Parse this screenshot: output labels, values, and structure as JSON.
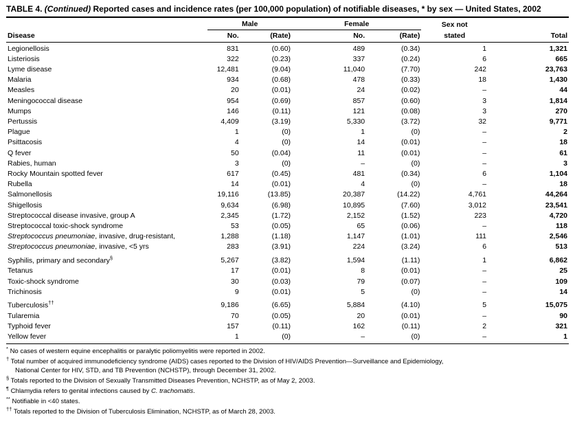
{
  "title": {
    "prefix": "TABLE 4.",
    "continued": "(Continued)",
    "rest": "Reported cases and incidence rates (per 100,000 population) of notifiable diseases, * by sex — United States, 2002"
  },
  "table": {
    "header": {
      "disease": "Disease",
      "male": "Male",
      "female": "Female",
      "sex_not": "Sex not",
      "stated": "stated",
      "no": "No.",
      "rate": "(Rate)",
      "total": "Total"
    },
    "rows": [
      {
        "disease": [
          {
            "t": "Legionellosis"
          }
        ],
        "male_no": "831",
        "male_rate": "(0.60)",
        "female_no": "489",
        "female_rate": "(0.34)",
        "sex_not_stated": "1",
        "total": "1,321"
      },
      {
        "disease": [
          {
            "t": "Listeriosis"
          }
        ],
        "male_no": "322",
        "male_rate": "(0.23)",
        "female_no": "337",
        "female_rate": "(0.24)",
        "sex_not_stated": "6",
        "total": "665"
      },
      {
        "disease": [
          {
            "t": "Lyme disease"
          }
        ],
        "male_no": "12,481",
        "male_rate": "(9.04)",
        "female_no": "11,040",
        "female_rate": "(7.70)",
        "sex_not_stated": "242",
        "total": "23,763"
      },
      {
        "disease": [
          {
            "t": "Malaria"
          }
        ],
        "male_no": "934",
        "male_rate": "(0.68)",
        "female_no": "478",
        "female_rate": "(0.33)",
        "sex_not_stated": "18",
        "total": "1,430"
      },
      {
        "disease": [
          {
            "t": "Measles"
          }
        ],
        "male_no": "20",
        "male_rate": "(0.01)",
        "female_no": "24",
        "female_rate": "(0.02)",
        "sex_not_stated": "–",
        "total": "44"
      },
      {
        "disease": [
          {
            "t": "Meningococcal disease"
          }
        ],
        "male_no": "954",
        "male_rate": "(0.69)",
        "female_no": "857",
        "female_rate": "(0.60)",
        "sex_not_stated": "3",
        "total": "1,814"
      },
      {
        "disease": [
          {
            "t": "Mumps"
          }
        ],
        "male_no": "146",
        "male_rate": "(0.11)",
        "female_no": "121",
        "female_rate": "(0.08)",
        "sex_not_stated": "3",
        "total": "270"
      },
      {
        "disease": [
          {
            "t": "Pertussis"
          }
        ],
        "male_no": "4,409",
        "male_rate": "(3.19)",
        "female_no": "5,330",
        "female_rate": "(3.72)",
        "sex_not_stated": "32",
        "total": "9,771"
      },
      {
        "disease": [
          {
            "t": "Plague"
          }
        ],
        "male_no": "1",
        "male_rate": "(0)",
        "female_no": "1",
        "female_rate": "(0)",
        "sex_not_stated": "–",
        "total": "2"
      },
      {
        "disease": [
          {
            "t": "Psittacosis"
          }
        ],
        "male_no": "4",
        "male_rate": "(0)",
        "female_no": "14",
        "female_rate": "(0.01)",
        "sex_not_stated": "–",
        "total": "18"
      },
      {
        "disease": [
          {
            "t": "Q fever"
          }
        ],
        "male_no": "50",
        "male_rate": "(0.04)",
        "female_no": "11",
        "female_rate": "(0.01)",
        "sex_not_stated": "–",
        "total": "61"
      },
      {
        "disease": [
          {
            "t": "Rabies, human"
          }
        ],
        "male_no": "3",
        "male_rate": "(0)",
        "female_no": "–",
        "female_rate": "(0)",
        "sex_not_stated": "–",
        "total": "3"
      },
      {
        "disease": [
          {
            "t": "Rocky Mountain spotted fever"
          }
        ],
        "male_no": "617",
        "male_rate": "(0.45)",
        "female_no": "481",
        "female_rate": "(0.34)",
        "sex_not_stated": "6",
        "total": "1,104"
      },
      {
        "disease": [
          {
            "t": "Rubella"
          }
        ],
        "male_no": "14",
        "male_rate": "(0.01)",
        "female_no": "4",
        "female_rate": "(0)",
        "sex_not_stated": "–",
        "total": "18"
      },
      {
        "disease": [
          {
            "t": "Salmonellosis"
          }
        ],
        "male_no": "19,116",
        "male_rate": "(13.85)",
        "female_no": "20,387",
        "female_rate": "(14.22)",
        "sex_not_stated": "4,761",
        "total": "44,264"
      },
      {
        "disease": [
          {
            "t": "Shigellosis"
          }
        ],
        "male_no": "9,634",
        "male_rate": "(6.98)",
        "female_no": "10,895",
        "female_rate": "(7.60)",
        "sex_not_stated": "3,012",
        "total": "23,541"
      },
      {
        "disease": [
          {
            "t": "Streptococcal disease invasive, group A"
          }
        ],
        "male_no": "2,345",
        "male_rate": "(1.72)",
        "female_no": "2,152",
        "female_rate": "(1.52)",
        "sex_not_stated": "223",
        "total": "4,720"
      },
      {
        "disease": [
          {
            "t": "Streptococcal toxic-shock syndrome"
          }
        ],
        "male_no": "53",
        "male_rate": "(0.05)",
        "female_no": "65",
        "female_rate": "(0.06)",
        "sex_not_stated": "–",
        "total": "118"
      },
      {
        "disease": [
          {
            "s": "i",
            "t": "Streptococcus pneumoniae"
          },
          {
            "t": ", invasive, drug-resistant,"
          }
        ],
        "male_no": "1,288",
        "male_rate": "(1.18)",
        "female_no": "1,147",
        "female_rate": "(1.01)",
        "sex_not_stated": "111",
        "total": "2,546"
      },
      {
        "disease": [
          {
            "s": "i",
            "t": "Streptococcus pneumoniae"
          },
          {
            "t": ", invasive, <5 yrs"
          }
        ],
        "male_no": "283",
        "male_rate": "(3.91)",
        "female_no": "224",
        "female_rate": "(3.24)",
        "sex_not_stated": "6",
        "total": "513"
      },
      {
        "disease": [
          {
            "t": "Syphilis, primary and secondary"
          },
          {
            "s": "sup",
            "t": "§"
          }
        ],
        "male_no": "5,267",
        "male_rate": "(3.82)",
        "female_no": "1,594",
        "female_rate": "(1.11)",
        "sex_not_stated": "1",
        "total": "6,862"
      },
      {
        "disease": [
          {
            "t": "Tetanus"
          }
        ],
        "male_no": "17",
        "male_rate": "(0.01)",
        "female_no": "8",
        "female_rate": "(0.01)",
        "sex_not_stated": "–",
        "total": "25"
      },
      {
        "disease": [
          {
            "t": "Toxic-shock syndrome"
          }
        ],
        "male_no": "30",
        "male_rate": "(0.03)",
        "female_no": "79",
        "female_rate": "(0.07)",
        "sex_not_stated": "–",
        "total": "109"
      },
      {
        "disease": [
          {
            "t": "Trichinosis"
          }
        ],
        "male_no": "9",
        "male_rate": "(0.01)",
        "female_no": "5",
        "female_rate": "(0)",
        "sex_not_stated": "–",
        "total": "14"
      },
      {
        "disease": [
          {
            "t": "Tuberculosis"
          },
          {
            "s": "sup",
            "t": "††"
          }
        ],
        "male_no": "9,186",
        "male_rate": "(6.65)",
        "female_no": "5,884",
        "female_rate": "(4.10)",
        "sex_not_stated": "5",
        "total": "15,075"
      },
      {
        "disease": [
          {
            "t": "Tularemia"
          }
        ],
        "male_no": "70",
        "male_rate": "(0.05)",
        "female_no": "20",
        "female_rate": "(0.01)",
        "sex_not_stated": "–",
        "total": "90"
      },
      {
        "disease": [
          {
            "t": "Typhoid fever"
          }
        ],
        "male_no": "157",
        "male_rate": "(0.11)",
        "female_no": "162",
        "female_rate": "(0.11)",
        "sex_not_stated": "2",
        "total": "321"
      },
      {
        "disease": [
          {
            "t": "Yellow fever"
          }
        ],
        "male_no": "1",
        "male_rate": "(0)",
        "female_no": "–",
        "female_rate": "(0)",
        "sex_not_stated": "–",
        "total": "1"
      }
    ]
  },
  "footnotes": [
    {
      "symbol": "*",
      "segments": [
        {
          "t": "No cases of western equine encephalitis or paralytic poliomyelitis were reported in 2002."
        }
      ]
    },
    {
      "symbol": "†",
      "segments": [
        {
          "t": "Total number of acquired immunodeficiency syndrome (AIDS) cases reported to the Division of HIV/AIDS Prevention—Surveillance and Epidemiology,"
        },
        {
          "s": "br"
        },
        {
          "t": "National Center for HIV, STD, and TB Prevention (NCHSTP), through December 31, 2002."
        }
      ]
    },
    {
      "symbol": "§",
      "segments": [
        {
          "t": "Totals reported to the Division of Sexually Transmitted Diseases Prevention, NCHSTP, as of May 2, 2003."
        }
      ]
    },
    {
      "symbol": "¶",
      "segments": [
        {
          "t": "Chlamydia refers to genital infections caused by "
        },
        {
          "s": "i",
          "t": "C. trachomatis"
        },
        {
          "t": "."
        }
      ]
    },
    {
      "symbol": "**",
      "segments": [
        {
          "t": "Notifiable in <40 states."
        }
      ]
    },
    {
      "symbol": "††",
      "segments": [
        {
          "t": "Totals reported to the Division of Tuberculosis Elimination, NCHSTP, as of March 28, 2003."
        }
      ]
    }
  ]
}
